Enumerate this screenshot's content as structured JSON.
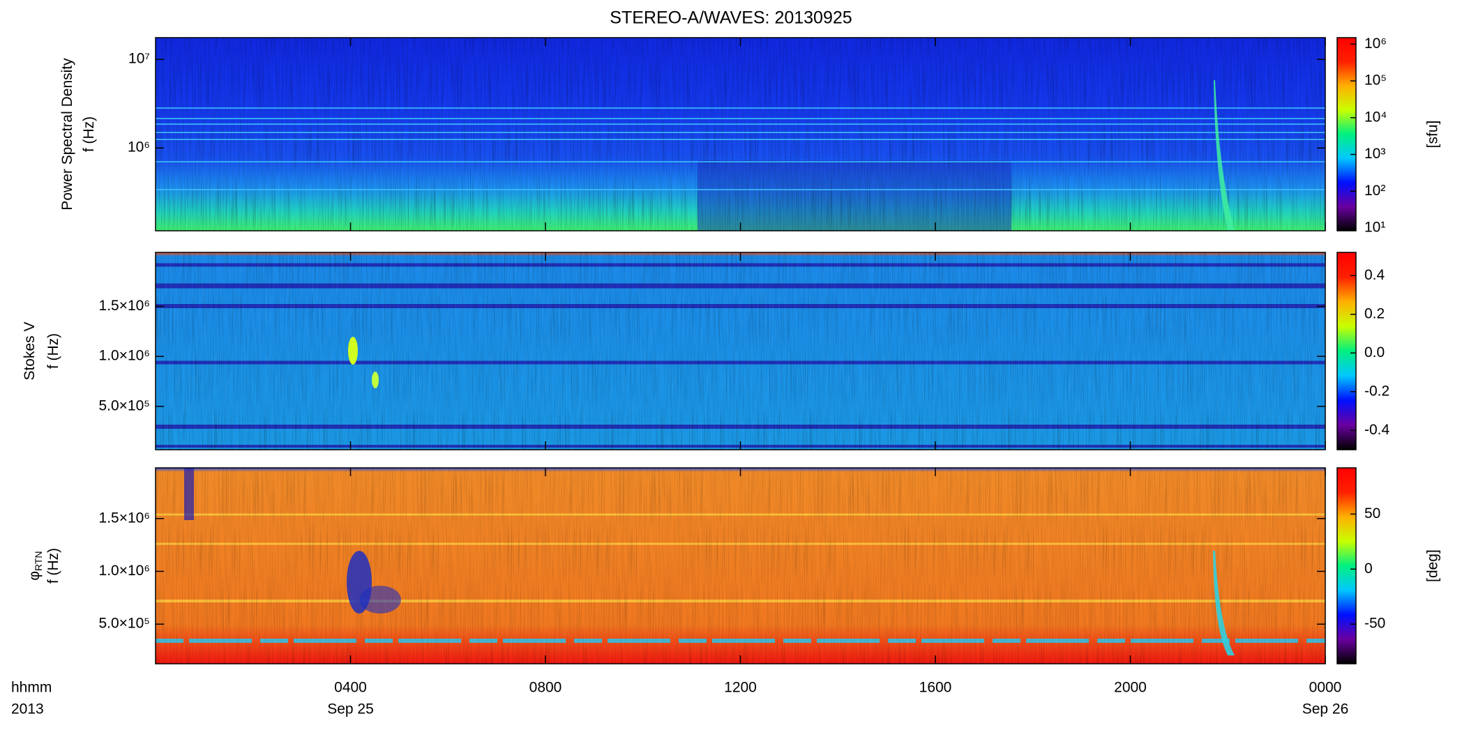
{
  "title": "STEREO-A/WAVES: 20130925",
  "colormap": [
    "#000000",
    "#6a00a0",
    "#0010ff",
    "#00c8ff",
    "#00f080",
    "#c8ff00",
    "#ffb000",
    "#ff2000",
    "#ff0000"
  ],
  "x_axis": {
    "xlim": [
      0,
      24
    ],
    "xticks": [
      {
        "value": 4,
        "label": "0400"
      },
      {
        "value": 8,
        "label": "0800"
      },
      {
        "value": 12,
        "label": "1200"
      },
      {
        "value": 16,
        "label": "1600"
      },
      {
        "value": 20,
        "label": "2000"
      },
      {
        "value": 24,
        "label": "0000"
      }
    ],
    "row_labels": [
      "hhmm",
      "2013"
    ],
    "date_labels": [
      {
        "value": 4,
        "label": "Sep 25"
      },
      {
        "value": 24,
        "label": "Sep 26"
      }
    ]
  },
  "chart_data": [
    {
      "type": "heatmap",
      "ylabel": [
        "Power Spectral Density",
        "f (Hz)"
      ],
      "yscale": "log",
      "ylim": [
        116000,
        17600000
      ],
      "yticks": [
        {
          "value": 1000000,
          "label": "10⁶"
        },
        {
          "value": 10000000,
          "label": "10⁷"
        }
      ],
      "colorbar": {
        "label": "[sfu]",
        "scale": "log",
        "lim": [
          8.4,
          1500000
        ],
        "ticks": [
          {
            "value": 10,
            "label": "10¹"
          },
          {
            "value": 100,
            "label": "10²"
          },
          {
            "value": 1000,
            "label": "10³"
          },
          {
            "value": 10000,
            "label": "10⁴"
          },
          {
            "value": 100000,
            "label": "10⁵"
          },
          {
            "value": 1000000,
            "label": "10⁶"
          }
        ]
      }
    },
    {
      "type": "heatmap",
      "ylabel": [
        "Stokes V",
        "f (Hz)"
      ],
      "yscale": "linear",
      "ylim": [
        66000,
        2040000
      ],
      "yticks": [
        {
          "value": 500000,
          "label": "5.0×10⁵"
        },
        {
          "value": 1000000,
          "label": "1.0×10⁶"
        },
        {
          "value": 1500000,
          "label": "1.5×10⁶"
        }
      ],
      "colorbar": {
        "scale": "linear",
        "lim": [
          -0.5,
          0.52
        ],
        "ticks": [
          -0.4,
          -0.2,
          {
            "value": 0,
            "label": "0.0"
          },
          0.2,
          0.4
        ]
      }
    },
    {
      "type": "heatmap",
      "ylabel": [
        "φ",
        "f (Hz)"
      ],
      "ylabel_subscript": "RTN",
      "yscale": "linear",
      "ylim": [
        125000,
        1980000
      ],
      "yticks": [
        {
          "value": 500000,
          "label": "5.0×10⁵"
        },
        {
          "value": 1000000,
          "label": "1.0×10⁶"
        },
        {
          "value": 1500000,
          "label": "1.5×10⁶"
        }
      ],
      "colorbar": {
        "label": "[deg]",
        "scale": "linear",
        "lim": [
          -86,
          92
        ],
        "ticks": [
          -50,
          0,
          50
        ]
      }
    }
  ]
}
